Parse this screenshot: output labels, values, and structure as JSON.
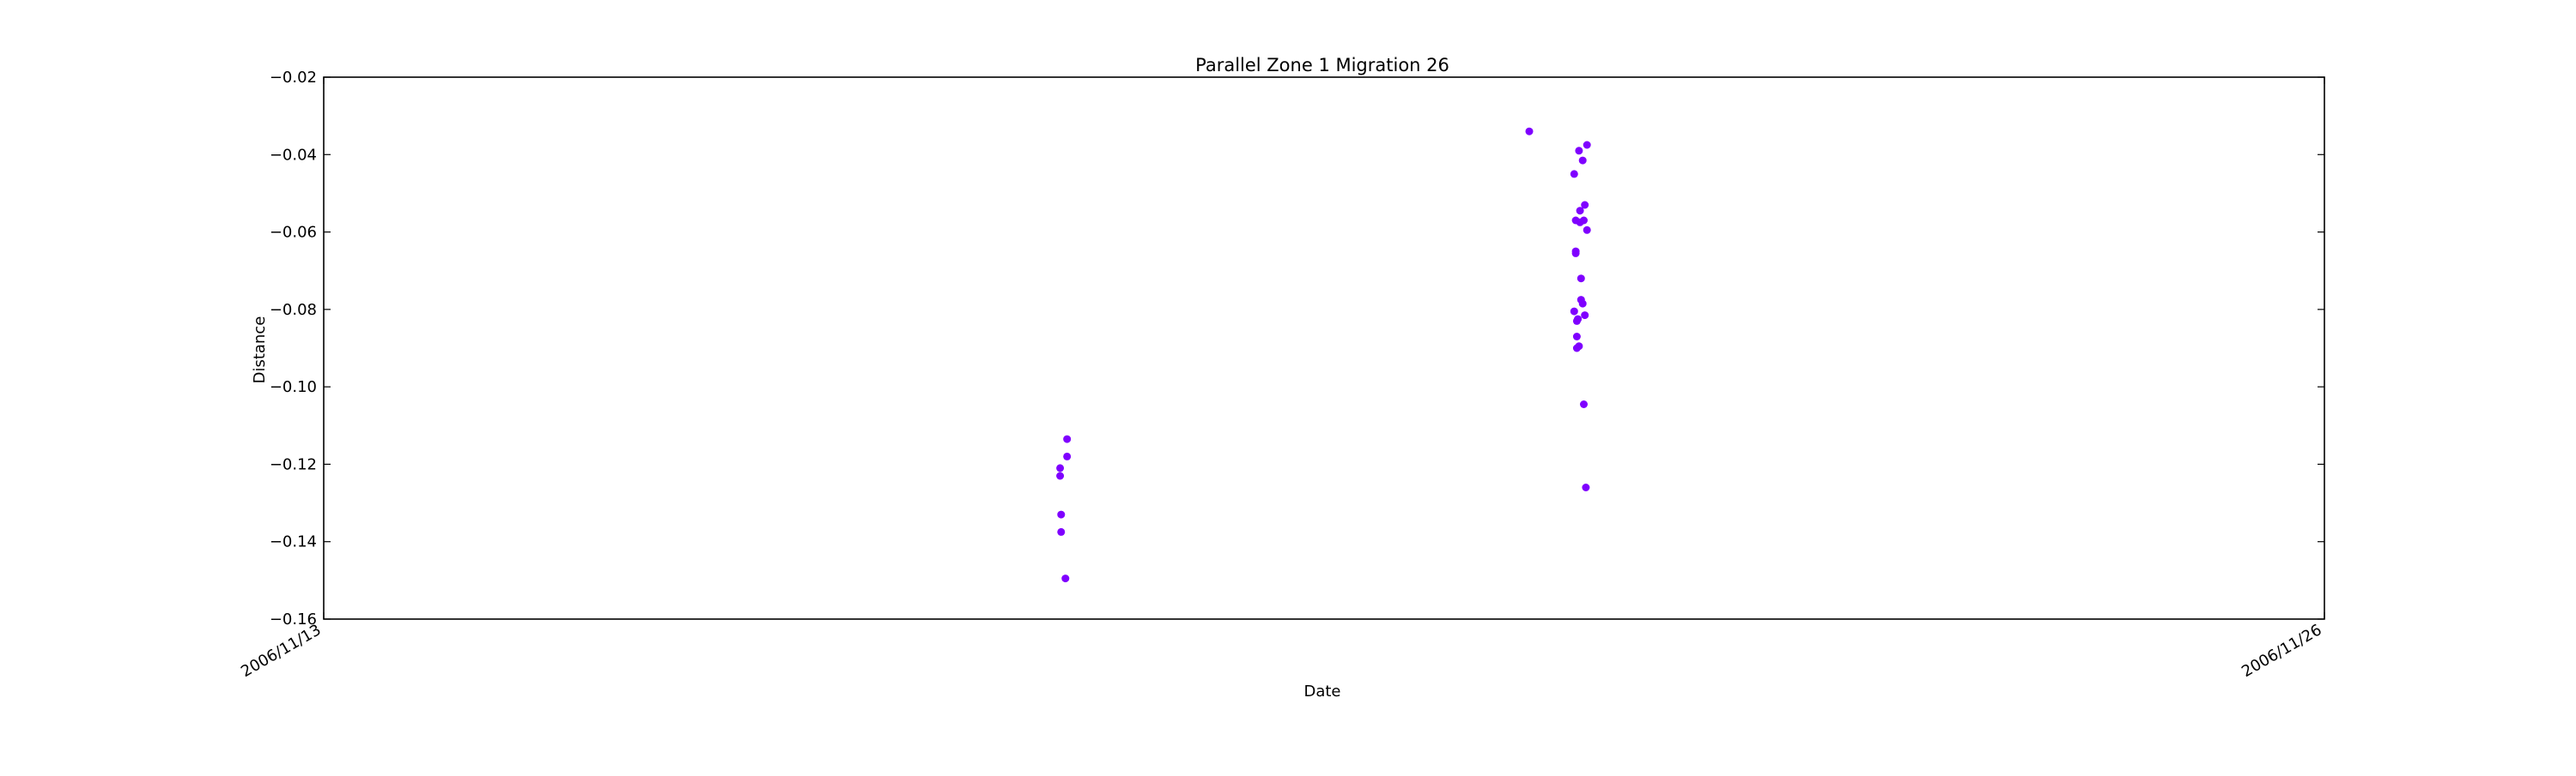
{
  "chart_data": {
    "type": "scatter",
    "title": "Parallel Zone 1 Migration 26",
    "xlabel": "Date",
    "ylabel": "Distance",
    "x_axis_type": "date",
    "xlim": [
      "2006/11/13",
      "2006/11/26"
    ],
    "ylim": [
      -0.16,
      -0.02
    ],
    "x_ticks": [
      "2006/11/13",
      "2006/11/26"
    ],
    "y_ticks": [
      -0.16,
      -0.14,
      -0.12,
      -0.1,
      -0.08,
      -0.06,
      -0.04,
      -0.02
    ],
    "y_tick_labels": [
      "−0.16",
      "−0.14",
      "−0.12",
      "−0.10",
      "−0.08",
      "−0.06",
      "−0.04",
      "−0.02"
    ],
    "grid": false,
    "marker_color": "#7f00ff",
    "points": [
      {
        "x": "2006/11/17 18:50",
        "y": -0.121
      },
      {
        "x": "2006/11/17 18:50",
        "y": -0.123
      },
      {
        "x": "2006/11/17 19:00",
        "y": -0.133
      },
      {
        "x": "2006/11/17 19:00",
        "y": -0.1375
      },
      {
        "x": "2006/11/17 19:40",
        "y": -0.1495
      },
      {
        "x": "2006/11/17 19:55",
        "y": -0.1135
      },
      {
        "x": "2006/11/17 19:55",
        "y": -0.118
      },
      {
        "x": "2006/11/20 20:00",
        "y": -0.034
      },
      {
        "x": "2006/11/21 03:00",
        "y": -0.045
      },
      {
        "x": "2006/11/21 03:00",
        "y": -0.0805
      },
      {
        "x": "2006/11/21 03:15",
        "y": -0.057
      },
      {
        "x": "2006/11/21 03:15",
        "y": -0.065
      },
      {
        "x": "2006/11/21 03:15",
        "y": -0.0655
      },
      {
        "x": "2006/11/21 03:25",
        "y": -0.083
      },
      {
        "x": "2006/11/21 03:25",
        "y": -0.087
      },
      {
        "x": "2006/11/21 03:25",
        "y": -0.09
      },
      {
        "x": "2006/11/21 03:35",
        "y": -0.0825
      },
      {
        "x": "2006/11/21 03:45",
        "y": -0.039
      },
      {
        "x": "2006/11/21 03:45",
        "y": -0.0895
      },
      {
        "x": "2006/11/21 03:55",
        "y": -0.0545
      },
      {
        "x": "2006/11/21 03:55",
        "y": -0.0575
      },
      {
        "x": "2006/11/21 04:05",
        "y": -0.072
      },
      {
        "x": "2006/11/21 04:05",
        "y": -0.0775
      },
      {
        "x": "2006/11/21 04:20",
        "y": -0.0415
      },
      {
        "x": "2006/11/21 04:20",
        "y": -0.0785
      },
      {
        "x": "2006/11/21 04:30",
        "y": -0.057
      },
      {
        "x": "2006/11/21 04:30",
        "y": -0.1045
      },
      {
        "x": "2006/11/21 04:40",
        "y": -0.053
      },
      {
        "x": "2006/11/21 04:40",
        "y": -0.0815
      },
      {
        "x": "2006/11/21 04:50",
        "y": -0.126
      },
      {
        "x": "2006/11/21 05:00",
        "y": -0.0375
      },
      {
        "x": "2006/11/21 05:00",
        "y": -0.0595
      }
    ]
  }
}
